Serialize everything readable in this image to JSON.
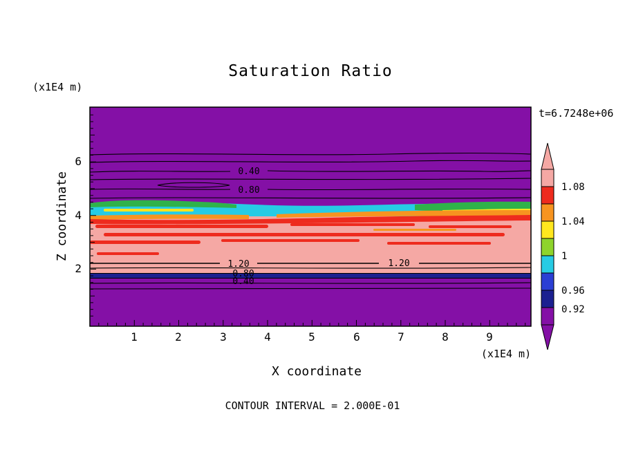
{
  "title": "Saturation Ratio",
  "annotations": {
    "time": "t=6.7248e+06",
    "contour_interval": "CONTOUR INTERVAL = 2.000E-01"
  },
  "x_axis": {
    "label": "X coordinate",
    "unit": "(x1E4 m)",
    "ticks": [
      "1",
      "2",
      "3",
      "4",
      "5",
      "6",
      "7",
      "8",
      "9"
    ]
  },
  "y_axis": {
    "label": "Z coordinate",
    "unit": "(x1E4 m)",
    "ticks": [
      "6",
      "4",
      "2"
    ]
  },
  "colorbar": {
    "labels": [
      "1.08",
      "1.04",
      "1",
      "0.96",
      "0.92"
    ],
    "colors": {
      "pink": "#f5a8a4",
      "red": "#ee2b1e",
      "orange": "#f79420",
      "yellow": "#ffe71e",
      "yellow_green": "#8ed42c",
      "green": "#2fb24a",
      "cyan": "#27cbe4",
      "blue": "#2b3fd4",
      "navy": "#1b2090",
      "purple": "#8410a6"
    }
  },
  "contour_labels": {
    "upper_040": "0.40",
    "upper_080": "0.80",
    "mid_120_left": "1.20",
    "mid_120_right": "1.20",
    "lower_080": "0.80",
    "lower_040": "0.40"
  },
  "chart_data": {
    "type": "heatmap",
    "subtype": "filled-contour",
    "title": "Saturation Ratio",
    "xlabel": "X coordinate (x1E4 m)",
    "ylabel": "Z coordinate (x1E4 m)",
    "x_range": [
      0,
      9.9
    ],
    "z_range": [
      0,
      8.2
    ],
    "time": "t=6.7248e+06",
    "contour_interval": 0.2,
    "colorbar_levels": [
      0.92,
      0.96,
      1.0,
      1.04,
      1.08
    ],
    "colorbar_order_top_to_bottom": [
      "pink",
      ">1.08",
      "red",
      "orange",
      "yellow",
      "yellow_green",
      "cyan",
      "blue",
      "navy",
      "purple",
      "<0.92"
    ],
    "horizontal_bands": [
      {
        "z_from": 4.7,
        "z_to": 8.2,
        "saturation": "< 0.92",
        "color_name": "purple",
        "line_contours": [
          "0.40",
          "0.80"
        ]
      },
      {
        "z_from": 4.1,
        "z_to": 4.7,
        "saturation": "0.92 to 1.00",
        "color_name": "cyan with green and yellow patches at left and right"
      },
      {
        "z_from": 3.9,
        "z_to": 4.1,
        "saturation": "1.04 to 1.08",
        "color_name": "orange and red thin band"
      },
      {
        "z_from": 2.0,
        "z_to": 3.9,
        "saturation": "about 1.1 (above 1.08)",
        "color_name": "pink with horizontal red streaks",
        "line_contours": [
          "1.20",
          "1.20"
        ]
      },
      {
        "z_from": 1.8,
        "z_to": 2.0,
        "saturation": "0.92 to 0.96",
        "color_name": "navy band",
        "line_contours": [
          "0.80"
        ]
      },
      {
        "z_from": 0.0,
        "z_to": 1.8,
        "saturation": "< 0.92",
        "color_name": "purple",
        "line_contours": [
          "0.40"
        ]
      }
    ]
  }
}
